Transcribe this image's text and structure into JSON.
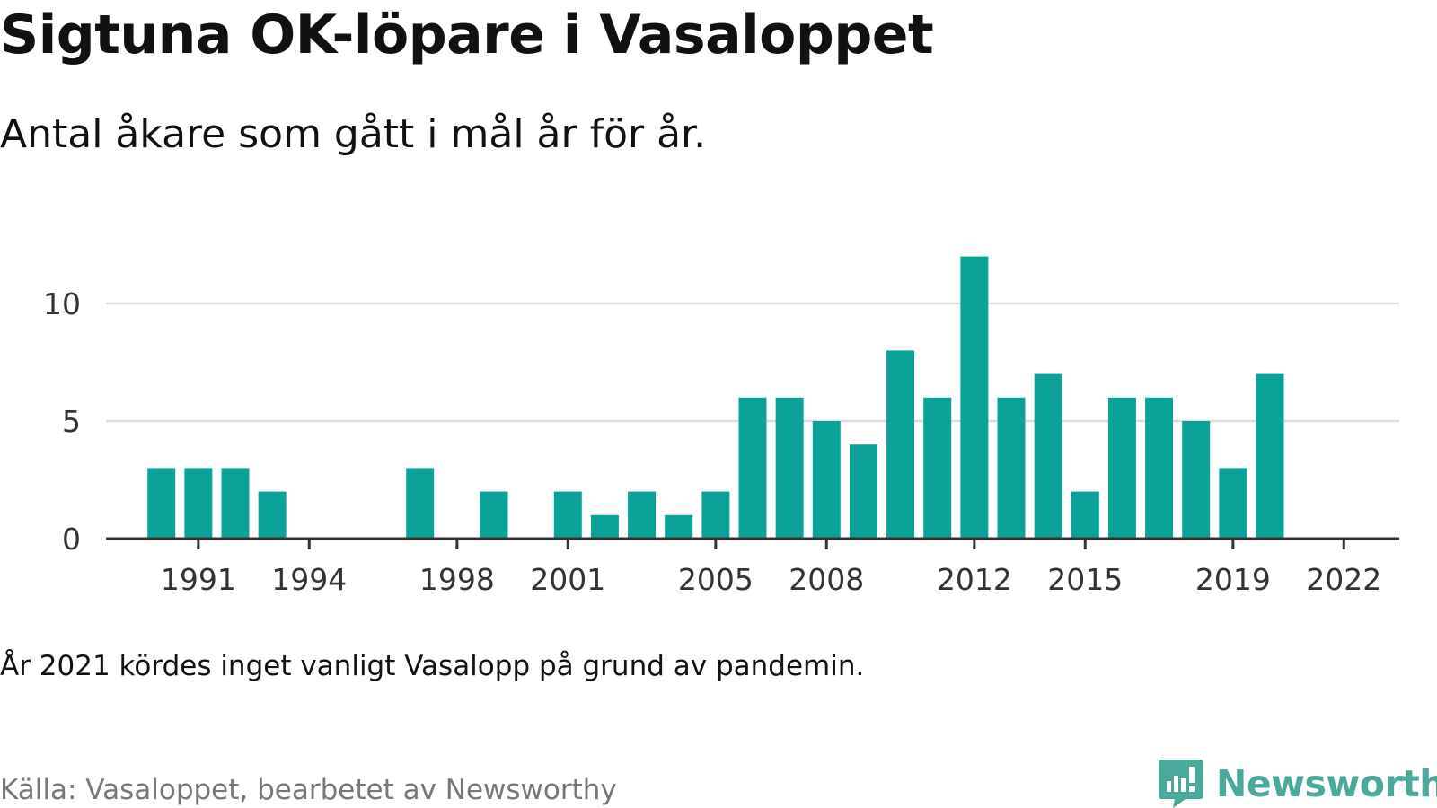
{
  "title": "Sigtuna OK-löpare i Vasaloppet",
  "subtitle": "Antal åkare som gått i mål år för år.",
  "note": "År 2021 kördes inget vanligt Vasalopp på grund av pandemin.",
  "source": "Källa: Vasaloppet, bearbetet av Newsworthy",
  "brand": {
    "name": "Newsworthy",
    "color": "#4aa99a",
    "icon": "newsworthy-logo-icon"
  },
  "chart_data": {
    "type": "bar",
    "title": "",
    "xlabel": "",
    "ylabel": "",
    "bar_color": "#0ba399",
    "grid_color": "#dddddd",
    "axis_color": "#333333",
    "grid": true,
    "legend": "none",
    "xlim": [
      1988.5,
      2023.5
    ],
    "ylim": [
      0,
      12
    ],
    "x_ticks": [
      1991,
      1994,
      1998,
      2001,
      2005,
      2008,
      2012,
      2015,
      2019,
      2022
    ],
    "x_tick_labels": [
      "1991",
      "1994",
      "1998",
      "2001",
      "2005",
      "2008",
      "2012",
      "2015",
      "2019",
      "2022"
    ],
    "y_ticks": [
      0,
      5,
      10
    ],
    "y_tick_labels": [
      "0",
      "5",
      "10"
    ],
    "x": [
      1990,
      1991,
      1992,
      1993,
      1997,
      1999,
      2001,
      2002,
      2003,
      2004,
      2005,
      2006,
      2007,
      2008,
      2009,
      2010,
      2011,
      2012,
      2013,
      2014,
      2015,
      2016,
      2017,
      2018,
      2019,
      2020,
      2022
    ],
    "values": [
      3,
      3,
      3,
      2,
      3,
      2,
      2,
      1,
      2,
      1,
      2,
      6,
      6,
      5,
      4,
      8,
      6,
      12,
      6,
      7,
      2,
      6,
      6,
      5,
      3,
      7,
      0
    ]
  }
}
